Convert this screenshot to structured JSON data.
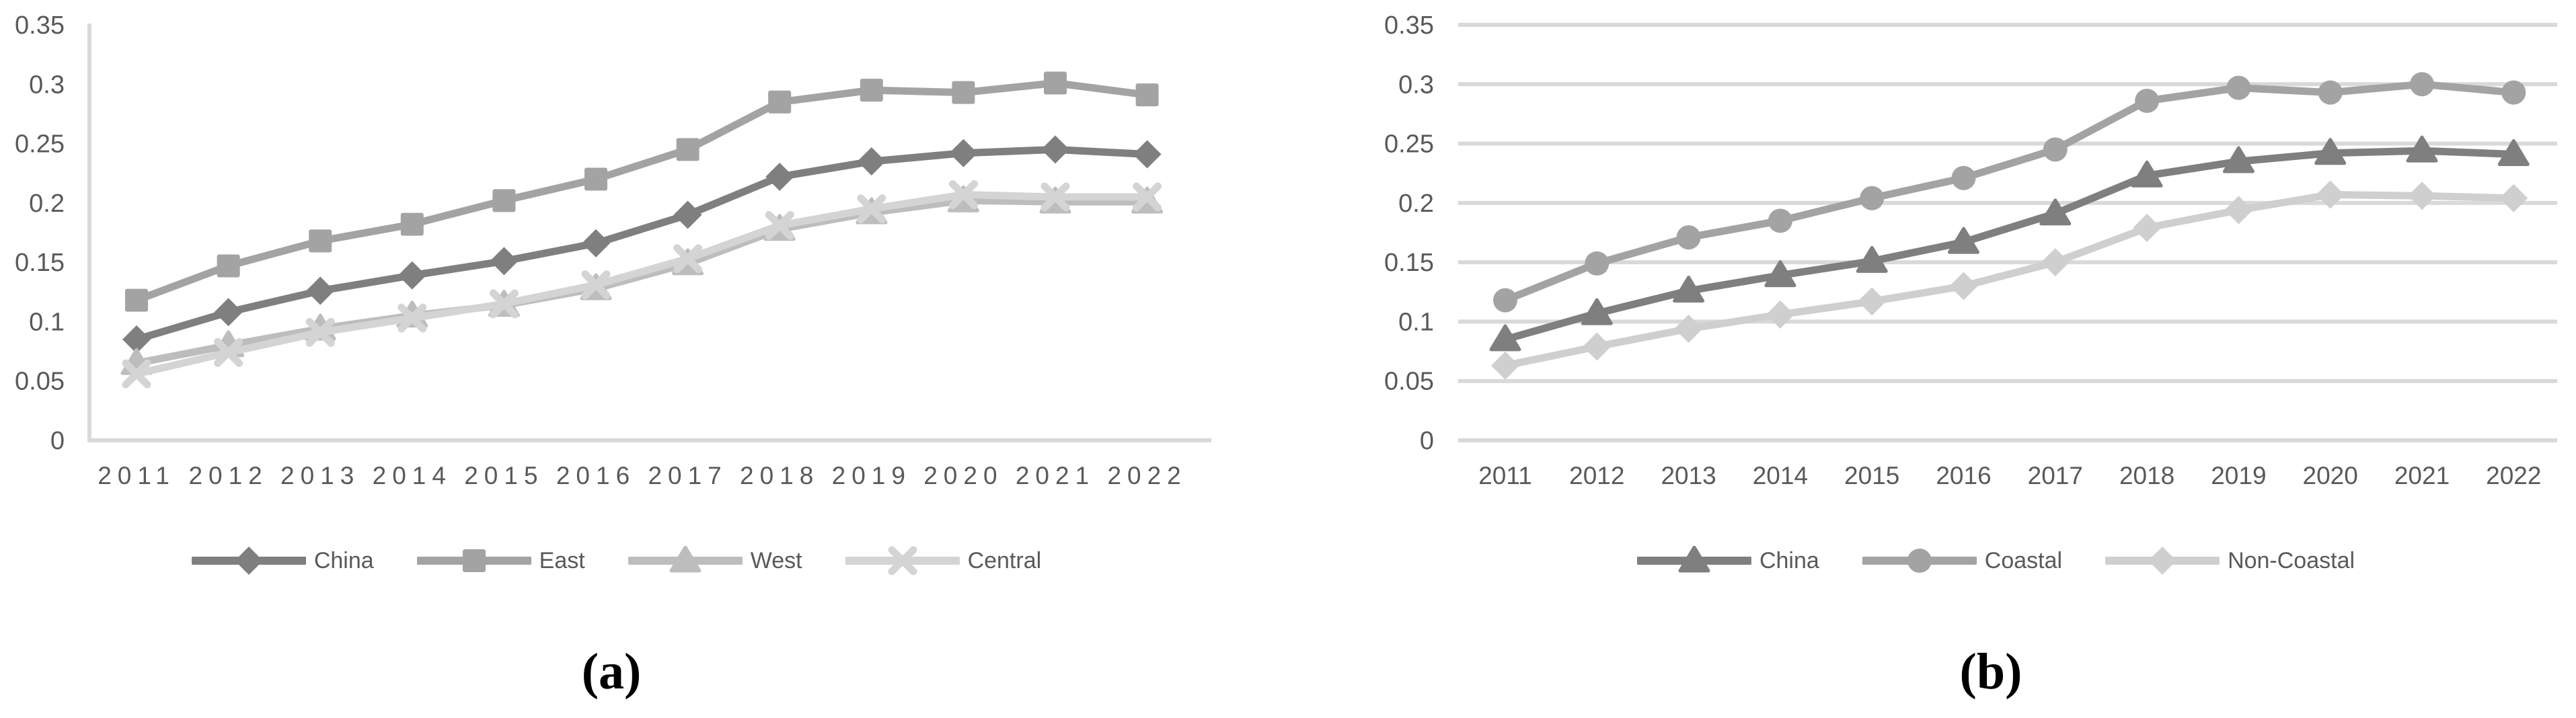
{
  "figure": {
    "background": "#ffffff",
    "axis_color": "#d9d9d9",
    "tick_text_color": "#595959",
    "caption_a": "(a)",
    "caption_b": "(b)"
  },
  "chart_data": [
    {
      "id": "a",
      "type": "line",
      "title": "",
      "xlabel": "",
      "ylabel": "",
      "caption": "(a)",
      "categories": [
        "2011",
        "2012",
        "2013",
        "2014",
        "2015",
        "2016",
        "2017",
        "2018",
        "2019",
        "2020",
        "2021",
        "2022"
      ],
      "ylim": [
        0,
        0.35
      ],
      "yticks": [
        0,
        0.05,
        0.1,
        0.15,
        0.2,
        0.25,
        0.3,
        0.35
      ],
      "ytick_labels": [
        "0",
        "0.05",
        "0.1",
        "0.15",
        "0.2",
        "0.25",
        "0.3",
        "0.35"
      ],
      "grid": false,
      "axis_lines": true,
      "legend_position": "bottom",
      "series": [
        {
          "name": "China",
          "marker": "diamond",
          "color": "#7f7f7f",
          "values": [
            0.085,
            0.108,
            0.126,
            0.139,
            0.151,
            0.166,
            0.19,
            0.222,
            0.235,
            0.242,
            0.245,
            0.241
          ]
        },
        {
          "name": "East",
          "marker": "square",
          "color": "#a3a3a3",
          "values": [
            0.118,
            0.147,
            0.168,
            0.182,
            0.202,
            0.22,
            0.245,
            0.285,
            0.295,
            0.293,
            0.301,
            0.291
          ]
        },
        {
          "name": "West",
          "marker": "triangle",
          "color": "#bdbdbd",
          "values": [
            0.065,
            0.08,
            0.094,
            0.105,
            0.114,
            0.128,
            0.149,
            0.178,
            0.192,
            0.202,
            0.201,
            0.201
          ]
        },
        {
          "name": "Central",
          "marker": "x",
          "color": "#d4d4d4",
          "values": [
            0.056,
            0.074,
            0.091,
            0.103,
            0.115,
            0.131,
            0.153,
            0.181,
            0.195,
            0.207,
            0.205,
            0.205
          ]
        }
      ]
    },
    {
      "id": "b",
      "type": "line",
      "title": "",
      "xlabel": "",
      "ylabel": "",
      "caption": "(b)",
      "categories": [
        "2011",
        "2012",
        "2013",
        "2014",
        "2015",
        "2016",
        "2017",
        "2018",
        "2019",
        "2020",
        "2021",
        "2022"
      ],
      "ylim": [
        0,
        0.35
      ],
      "yticks": [
        0,
        0.05,
        0.1,
        0.15,
        0.2,
        0.25,
        0.3,
        0.35
      ],
      "ytick_labels": [
        "0",
        "0.05",
        "0.1",
        "0.15",
        "0.2",
        "0.25",
        "0.3",
        "0.35"
      ],
      "grid": true,
      "axis_lines": false,
      "legend_position": "bottom",
      "series": [
        {
          "name": "China",
          "marker": "triangle",
          "color": "#7f7f7f",
          "values": [
            0.085,
            0.107,
            0.126,
            0.139,
            0.151,
            0.167,
            0.191,
            0.223,
            0.235,
            0.242,
            0.244,
            0.241
          ]
        },
        {
          "name": "Coastal",
          "marker": "circle",
          "color": "#a3a3a3",
          "values": [
            0.118,
            0.149,
            0.171,
            0.185,
            0.204,
            0.221,
            0.245,
            0.286,
            0.297,
            0.293,
            0.3,
            0.293
          ]
        },
        {
          "name": "Non-Coastal",
          "marker": "diamond",
          "color": "#cfcfcf",
          "values": [
            0.063,
            0.079,
            0.094,
            0.106,
            0.117,
            0.13,
            0.15,
            0.179,
            0.194,
            0.207,
            0.206,
            0.204
          ]
        }
      ]
    }
  ]
}
